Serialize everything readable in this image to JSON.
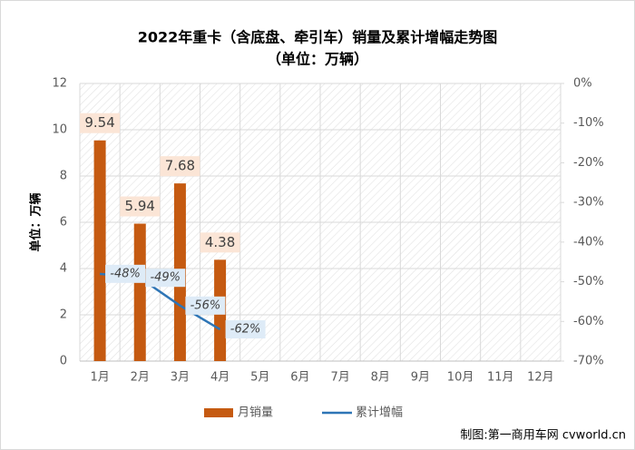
{
  "chart_data": {
    "type": "bar",
    "title": "2022年重卡（含底盘、牵引车）销量及累计增幅走势图",
    "subtitle": "（单位：万辆）",
    "ylabel": "单位：万辆",
    "source": "制图:第一商用车网 cvworld.cn",
    "categories": [
      "1月",
      "2月",
      "3月",
      "4月",
      "5月",
      "6月",
      "7月",
      "8月",
      "9月",
      "10月",
      "11月",
      "12月"
    ],
    "series": [
      {
        "name": "月销量",
        "color": "#c55a11",
        "type": "bar",
        "values": [
          9.54,
          5.94,
          7.68,
          4.38,
          null,
          null,
          null,
          null,
          null,
          null,
          null,
          null
        ]
      },
      {
        "name": "累计增幅",
        "color": "#2e75b6",
        "type": "line",
        "axis": "y2",
        "values": [
          -48,
          -49,
          -56,
          -62,
          null,
          null,
          null,
          null,
          null,
          null,
          null,
          null
        ],
        "value_labels": [
          "-48%",
          "-49%",
          "-56%",
          "-62%",
          null,
          null,
          null,
          null,
          null,
          null,
          null,
          null
        ]
      }
    ],
    "ylim": [
      0,
      12
    ],
    "yticks": [
      0,
      2,
      4,
      6,
      8,
      10,
      12
    ],
    "y2lim": [
      -70,
      0
    ],
    "y2ticks": [
      {
        "value": 0,
        "label": "0%"
      },
      {
        "value": -10,
        "label": "-10%"
      },
      {
        "value": -20,
        "label": "-20%"
      },
      {
        "value": -30,
        "label": "-30%"
      },
      {
        "value": -40,
        "label": "-40%"
      },
      {
        "value": -50,
        "label": "-50%"
      },
      {
        "value": -60,
        "label": "-60%"
      },
      {
        "value": -70,
        "label": "-70%"
      }
    ],
    "grid": true,
    "legend": "bottom"
  }
}
